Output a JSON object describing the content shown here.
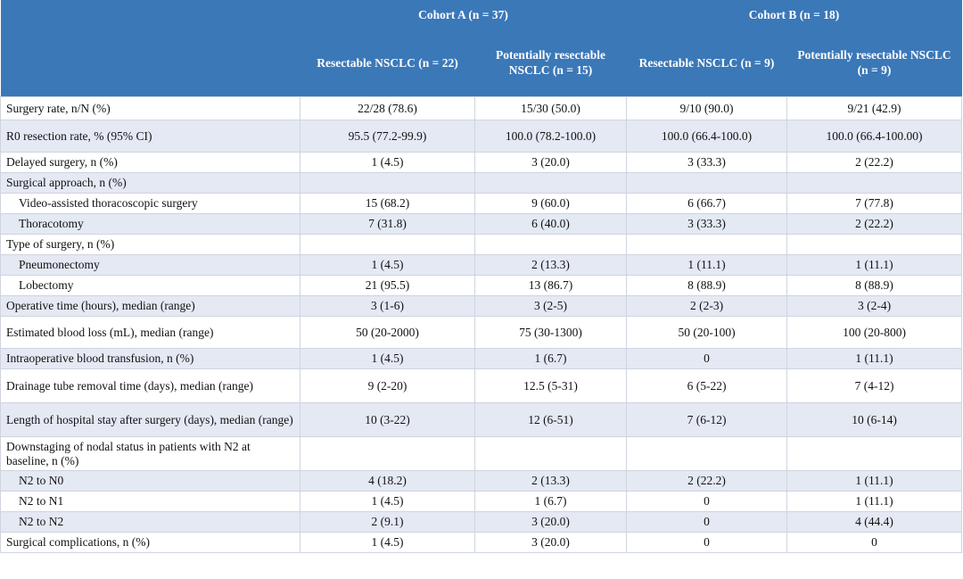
{
  "header": {
    "cohorts": [
      "Cohort A (n = 37)",
      "Cohort B (n = 18)"
    ],
    "columns": [
      "Resectable NSCLC (n = 22)",
      "Potentially resectable NSCLC (n = 15)",
      "Resectable NSCLC (n = 9)",
      "Potentially resectable NSCLC (n = 9)"
    ]
  },
  "table": {
    "rows": [
      {
        "label": "Surgery rate, n/N (%)",
        "values": [
          "22/28 (78.6)",
          "15/30 (50.0)",
          "9/10 (90.0)",
          "9/21 (42.9)"
        ]
      },
      {
        "label": "R0 resection rate, % (95% CI)",
        "values": [
          "95.5 (77.2-99.9)",
          "100.0 (78.2-100.0)",
          "100.0 (66.4-100.0)",
          "100.0 (66.4-100.00)"
        ]
      },
      {
        "label": "Delayed surgery, n (%)",
        "values": [
          "1 (4.5)",
          "3 (20.0)",
          "3 (33.3)",
          "2 (22.2)"
        ]
      },
      {
        "label": "Surgical approach, n (%)",
        "subrows": [
          {
            "label": "Video-assisted thoracoscopic surgery",
            "values": [
              "15 (68.2)",
              "9 (60.0)",
              "6 (66.7)",
              "7 (77.8)"
            ]
          },
          {
            "label": "Thoracotomy",
            "values": [
              "7 (31.8)",
              "6 (40.0)",
              "3 (33.3)",
              "2 (22.2)"
            ]
          }
        ]
      },
      {
        "label": "Type of surgery, n (%)",
        "subrows": [
          {
            "label": "Pneumonectomy",
            "values": [
              "1 (4.5)",
              "2 (13.3)",
              "1 (11.1)",
              "1 (11.1)"
            ]
          },
          {
            "label": "Lobectomy",
            "values": [
              "21 (95.5)",
              "13 (86.7)",
              "8 (88.9)",
              "8 (88.9)"
            ]
          }
        ]
      },
      {
        "label": "Operative time (hours), median (range)",
        "values": [
          "3 (1-6)",
          "3 (2-5)",
          "2 (2-3)",
          "3 (2-4)"
        ]
      },
      {
        "label": "Estimated blood loss (mL), median (range)",
        "values": [
          "50 (20-2000)",
          "75 (30-1300)",
          "50 (20-100)",
          "100 (20-800)"
        ]
      },
      {
        "label": "Intraoperative blood transfusion, n (%)",
        "values": [
          "1 (4.5)",
          "1 (6.7)",
          "0",
          "1 (11.1)"
        ]
      },
      {
        "label": "Drainage tube removal time (days), median (range)",
        "values": [
          "9 (2-20)",
          "12.5 (5-31)",
          "6 (5-22)",
          "7 (4-12)"
        ]
      },
      {
        "label": "Length of hospital stay after surgery (days), median (range)",
        "values": [
          "10 (3-22)",
          "12 (6-51)",
          "7 (6-12)",
          "10 (6-14)"
        ]
      },
      {
        "label": "Downstaging of nodal status in patients with N2 at baseline, n (%)",
        "subrows": [
          {
            "label": "N2 to N0",
            "values": [
              "4 (18.2)",
              "2 (13.3)",
              "2 (22.2)",
              "1 (11.1)"
            ]
          },
          {
            "label": "N2 to N1",
            "values": [
              "1 (4.5)",
              "1 (6.7)",
              "0",
              "1 (11.1)"
            ]
          },
          {
            "label": "N2 to N2",
            "values": [
              "2 (9.1)",
              "3 (20.0)",
              "0",
              "4 (44.4)"
            ]
          }
        ]
      },
      {
        "label": "Surgical complications, n (%)",
        "values": [
          "1 (4.5)",
          "3 (20.0)",
          "0",
          "0"
        ]
      }
    ]
  }
}
